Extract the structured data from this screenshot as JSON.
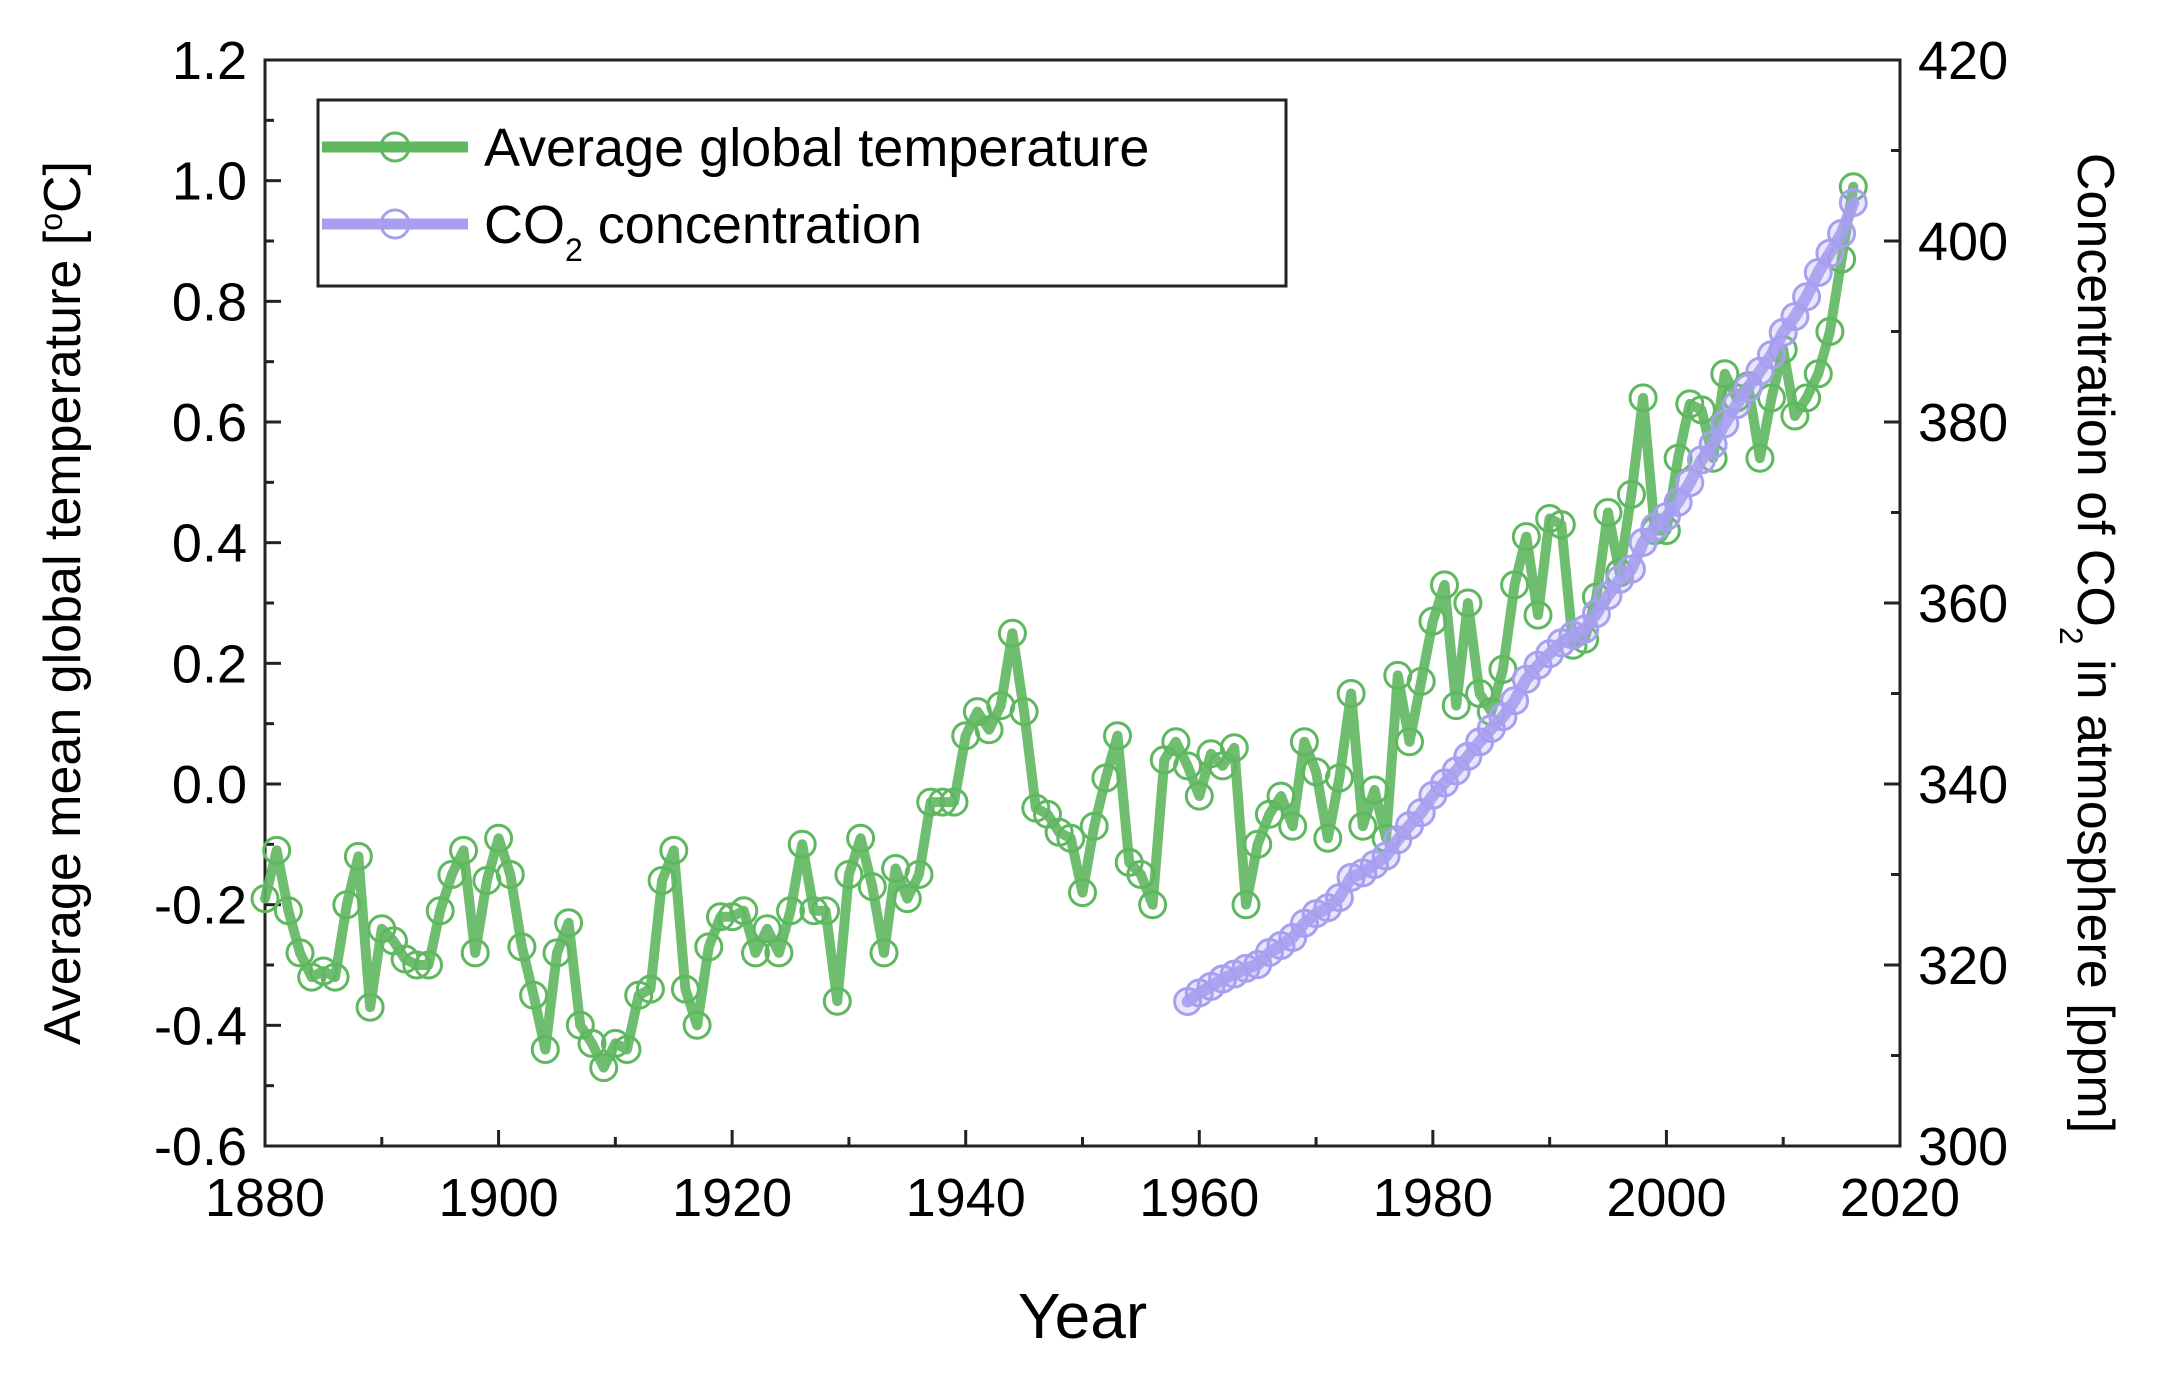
{
  "chart_data": {
    "type": "line",
    "xlabel": "Year",
    "ylabel": "Average mean global temperature [°C]",
    "ylabel_parts": {
      "main": "Average mean global temperature [",
      "sup": "o",
      "end": "C]"
    },
    "y2label": "Concentration of CO2 in atmosphere [ppm]",
    "y2label_parts": {
      "pre": "Concentration of CO",
      "sub": "2",
      "post": " in atmosphere [ppm]"
    },
    "xlim": [
      1880,
      2020
    ],
    "ylim": [
      -0.6,
      1.2
    ],
    "y2lim": [
      300,
      420
    ],
    "xticks": [
      "1880",
      "1900",
      "1920",
      "1940",
      "1960",
      "1980",
      "2000",
      "2020"
    ],
    "yticks": [
      "-0.6",
      "-0.4",
      "-0.2",
      "0.0",
      "0.2",
      "0.4",
      "0.6",
      "0.8",
      "1.0",
      "1.2"
    ],
    "y2ticks": [
      "300",
      "320",
      "340",
      "360",
      "380",
      "400",
      "420"
    ],
    "legend_position": "top-left",
    "legend": [
      {
        "label": "Average global temperature",
        "color": "#5fb760"
      },
      {
        "label_pre": "CO",
        "label_sub": "2",
        "label_post": " concentration",
        "label": "CO2 concentration",
        "color": "#a79ff0"
      }
    ],
    "series": [
      {
        "name": "Average global temperature",
        "axis": "left",
        "color": "#5fb760",
        "x_start": 1880,
        "values": [
          -0.19,
          -0.11,
          -0.21,
          -0.28,
          -0.32,
          -0.31,
          -0.32,
          -0.2,
          -0.12,
          -0.37,
          -0.24,
          -0.26,
          -0.29,
          -0.3,
          -0.3,
          -0.21,
          -0.15,
          -0.11,
          -0.28,
          -0.16,
          -0.09,
          -0.15,
          -0.27,
          -0.35,
          -0.44,
          -0.28,
          -0.23,
          -0.4,
          -0.43,
          -0.47,
          -0.43,
          -0.44,
          -0.35,
          -0.34,
          -0.16,
          -0.11,
          -0.34,
          -0.4,
          -0.27,
          -0.22,
          -0.22,
          -0.21,
          -0.28,
          -0.24,
          -0.28,
          -0.21,
          -0.1,
          -0.21,
          -0.21,
          -0.36,
          -0.15,
          -0.09,
          -0.17,
          -0.28,
          -0.14,
          -0.19,
          -0.15,
          -0.03,
          -0.03,
          -0.03,
          0.08,
          0.12,
          0.09,
          0.13,
          0.25,
          0.12,
          -0.04,
          -0.05,
          -0.08,
          -0.09,
          -0.18,
          -0.07,
          0.01,
          0.08,
          -0.13,
          -0.15,
          -0.2,
          0.04,
          0.07,
          0.03,
          -0.02,
          0.05,
          0.03,
          0.06,
          -0.2,
          -0.1,
          -0.05,
          -0.02,
          -0.07,
          0.07,
          0.02,
          -0.09,
          0.01,
          0.15,
          -0.07,
          -0.01,
          -0.09,
          0.18,
          0.07,
          0.17,
          0.27,
          0.33,
          0.13,
          0.3,
          0.15,
          0.12,
          0.19,
          0.33,
          0.41,
          0.28,
          0.44,
          0.43,
          0.23,
          0.24,
          0.31,
          0.45,
          0.35,
          0.48,
          0.64,
          0.42,
          0.42,
          0.54,
          0.63,
          0.62,
          0.54,
          0.68,
          0.64,
          0.66,
          0.54,
          0.64,
          0.72,
          0.61,
          0.64,
          0.68,
          0.75,
          0.87,
          0.99
        ]
      },
      {
        "name": "CO2 concentration",
        "axis": "right",
        "color": "#a79ff0",
        "x_start": 1959,
        "values": [
          315.97,
          316.91,
          317.64,
          318.45,
          318.99,
          319.62,
          320.04,
          321.38,
          322.16,
          323.04,
          324.62,
          325.68,
          326.32,
          327.45,
          329.68,
          330.18,
          331.11,
          332.04,
          333.83,
          335.4,
          336.84,
          338.75,
          340.11,
          341.45,
          343.05,
          344.65,
          346.12,
          347.42,
          349.19,
          351.57,
          353.12,
          354.39,
          355.61,
          356.45,
          357.1,
          358.83,
          360.82,
          362.61,
          363.73,
          366.7,
          368.38,
          369.55,
          371.14,
          373.28,
          375.8,
          377.52,
          379.8,
          381.9,
          383.79,
          385.6,
          387.43,
          389.9,
          391.65,
          393.85,
          396.52,
          398.65,
          400.83,
          404.24
        ]
      }
    ]
  }
}
